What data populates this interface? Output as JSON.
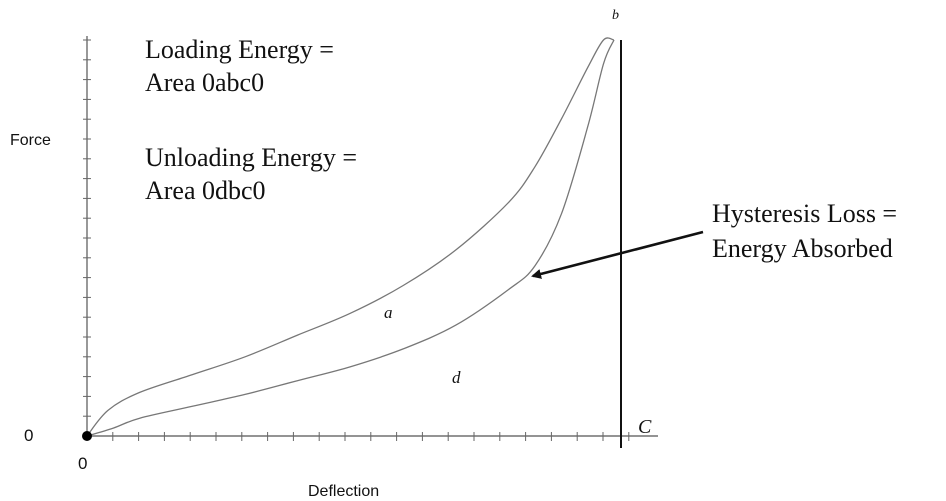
{
  "chart_data": {
    "type": "line",
    "title": "",
    "xlabel": "Deflection",
    "ylabel": "Force",
    "x_origin_label": "0",
    "y_origin_label": "0",
    "xlim": [
      0,
      1
    ],
    "ylim": [
      0,
      1
    ],
    "grid": false,
    "series": [
      {
        "name": "a",
        "x": [
          0,
          0.04,
          0.1,
          0.2,
          0.3,
          0.4,
          0.5,
          0.6,
          0.7,
          0.8,
          0.85,
          0.9,
          0.95,
          0.98,
          1.0
        ],
        "y": [
          0,
          0.065,
          0.11,
          0.155,
          0.2,
          0.255,
          0.31,
          0.38,
          0.47,
          0.59,
          0.68,
          0.8,
          0.93,
          1.0,
          1.0
        ]
      },
      {
        "name": "d",
        "x": [
          0,
          0.05,
          0.1,
          0.2,
          0.3,
          0.4,
          0.5,
          0.6,
          0.7,
          0.8,
          0.85,
          0.9,
          0.95,
          0.98,
          1.0
        ],
        "y": [
          0,
          0.02,
          0.045,
          0.075,
          0.105,
          0.14,
          0.175,
          0.22,
          0.28,
          0.37,
          0.43,
          0.56,
          0.78,
          0.94,
          1.0
        ]
      }
    ],
    "point_labels": {
      "origin": "0",
      "a": "a",
      "b": "b",
      "c": "C",
      "d": "d"
    },
    "annotations": {
      "loading_line1": "Loading Energy =",
      "loading_line2": "Area 0abc0",
      "unloading_line1": "Unloading Energy =",
      "unloading_line2": "Area 0dbc0",
      "hysteresis_line1": "Hysteresis  Loss =",
      "hysteresis_line2": "Energy Absorbed"
    }
  }
}
